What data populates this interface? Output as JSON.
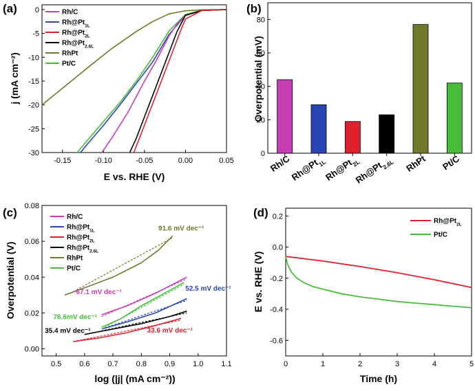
{
  "colors": {
    "rhc": "#c83cb4",
    "rhpt1l": "#2a46b4",
    "rhpt2l": "#e0202c",
    "rhpt26l": "#000000",
    "rhpt": "#707a2a",
    "ptc": "#46be3a"
  },
  "chart_data": [
    {
      "id": "a",
      "type": "line",
      "panel_label": "(a)",
      "xlabel": "E vs. RHE (V)",
      "ylabel": "j (mA cm⁻²)",
      "xlim": [
        -0.175,
        0.05
      ],
      "ylim": [
        -30,
        1
      ],
      "xticks": [
        "-0.15",
        "-0.10",
        "-0.05",
        "0.00",
        "0.05"
      ],
      "yticks": [
        "0",
        "-5",
        "-10",
        "-15",
        "-20",
        "-25",
        "-30"
      ],
      "legend": [
        {
          "base": "Rh/C",
          "sub": "",
          "key": "rhc"
        },
        {
          "base": "Rh@Pt",
          "sub": "1L",
          "key": "rhpt1l"
        },
        {
          "base": "Rh@Pt",
          "sub": "2L",
          "key": "rhpt2l"
        },
        {
          "base": "Rh@Pt",
          "sub": "2.6L",
          "key": "rhpt26l"
        },
        {
          "base": "RhPt",
          "sub": "",
          "key": "rhpt"
        },
        {
          "base": "Pt/C",
          "sub": "",
          "key": "ptc"
        }
      ],
      "series": [
        {
          "name": "RhPt",
          "key": "rhpt",
          "x": [
            -0.175,
            -0.15,
            -0.12,
            -0.09,
            -0.06,
            -0.04,
            -0.02,
            0.0,
            0.02,
            0.05
          ],
          "y": [
            -20,
            -16.5,
            -12.3,
            -8.2,
            -4.6,
            -2.5,
            -0.9,
            -0.25,
            -0.05,
            0
          ]
        },
        {
          "name": "Pt/C",
          "key": "ptc",
          "x": [
            -0.132,
            -0.12,
            -0.1,
            -0.08,
            -0.06,
            -0.04,
            -0.02,
            0.0,
            0.02,
            0.05
          ],
          "y": [
            -30,
            -27.5,
            -23.5,
            -19.5,
            -15,
            -10,
            -4.5,
            -1.0,
            -0.15,
            0
          ]
        },
        {
          "name": "Rh@Pt1L",
          "key": "rhpt1l",
          "x": [
            -0.128,
            -0.12,
            -0.1,
            -0.08,
            -0.06,
            -0.04,
            -0.02,
            0.0,
            0.02,
            0.05
          ],
          "y": [
            -30,
            -28.3,
            -24.3,
            -20,
            -15.5,
            -11,
            -5.2,
            -1.2,
            -0.2,
            0
          ]
        },
        {
          "name": "Rh/C",
          "key": "rhc",
          "x": [
            -0.102,
            -0.09,
            -0.07,
            -0.05,
            -0.035,
            -0.02,
            -0.01,
            0.0,
            0.02,
            0.05
          ],
          "y": [
            -30,
            -27,
            -21.5,
            -15,
            -10.5,
            -5.5,
            -3,
            -1.2,
            -0.2,
            0
          ]
        },
        {
          "name": "Rh@Pt2.6L",
          "key": "rhpt26l",
          "x": [
            -0.068,
            -0.06,
            -0.05,
            -0.04,
            -0.03,
            -0.02,
            -0.01,
            0.0,
            0.02,
            0.05
          ],
          "y": [
            -30,
            -27,
            -22.5,
            -18,
            -13.5,
            -9,
            -4.5,
            -1.2,
            -0.2,
            0
          ]
        },
        {
          "name": "Rh@Pt2L",
          "key": "rhpt2l",
          "x": [
            -0.063,
            -0.055,
            -0.045,
            -0.035,
            -0.025,
            -0.015,
            -0.005,
            0.0,
            0.02,
            0.05
          ],
          "y": [
            -30,
            -26.5,
            -22,
            -17.5,
            -13,
            -8.5,
            -4,
            -2,
            -0.2,
            0
          ]
        }
      ]
    },
    {
      "id": "b",
      "type": "bar",
      "panel_label": "(b)",
      "ylabel": "Overpotential (mV)",
      "ylim": [
        0,
        90
      ],
      "yticks": [
        "0",
        "20",
        "40",
        "60",
        "80"
      ],
      "categories": [
        {
          "base": "Rh/C",
          "sub": "",
          "key": "rhc"
        },
        {
          "base": "Rh@Pt",
          "sub": "1L",
          "key": "rhpt1l"
        },
        {
          "base": "Rh@Pt",
          "sub": "2L",
          "key": "rhpt2l"
        },
        {
          "base": "Rh@Pt",
          "sub": "2.6L",
          "key": "rhpt26l"
        },
        {
          "base": "RhPt",
          "sub": "",
          "key": "rhpt"
        },
        {
          "base": "Pt/C",
          "sub": "",
          "key": "ptc"
        }
      ],
      "values": [
        44,
        29,
        19,
        23,
        77,
        42
      ]
    },
    {
      "id": "c",
      "type": "line",
      "panel_label": "(c)",
      "xlabel": "log (|j| (mA cm⁻²))",
      "ylabel": "Overpotential (V)",
      "xlim": [
        0.45,
        1.1
      ],
      "ylim": [
        -0.004,
        0.08
      ],
      "xticks": [
        "0.5",
        "0.6",
        "0.7",
        "0.8",
        "0.9",
        "1.0",
        "1.1"
      ],
      "yticks": [
        "0.00",
        "0.02",
        "0.04",
        "0.06",
        "0.08"
      ],
      "legend": [
        {
          "base": "Rh/C",
          "sub": "",
          "key": "rhc"
        },
        {
          "base": "Rh@Pt",
          "sub": "1L",
          "key": "rhpt1l"
        },
        {
          "base": "Rh@Pt",
          "sub": "2L",
          "key": "rhpt2l"
        },
        {
          "base": "Rh@Pt",
          "sub": "2.6L",
          "key": "rhpt26l"
        },
        {
          "base": "RhPt",
          "sub": "",
          "key": "rhpt"
        },
        {
          "base": "Pt/C",
          "sub": "",
          "key": "ptc"
        }
      ],
      "series": [
        {
          "name": "RhPt",
          "key": "rhpt",
          "x": [
            0.53,
            0.6,
            0.7,
            0.8,
            0.86,
            0.91
          ],
          "y": [
            0.03,
            0.034,
            0.04,
            0.048,
            0.055,
            0.063
          ],
          "fit_x": [
            0.55,
            0.91
          ],
          "fit_y": [
            0.031,
            0.062
          ]
        },
        {
          "name": "Rh/C",
          "key": "rhc",
          "x": [
            0.66,
            0.75,
            0.85,
            0.96
          ],
          "y": [
            0.019,
            0.024,
            0.031,
            0.04
          ],
          "fit_x": [
            0.66,
            0.96
          ],
          "fit_y": [
            0.018,
            0.039
          ]
        },
        {
          "name": "Rh@Pt1L",
          "key": "rhpt1l",
          "x": [
            0.66,
            0.75,
            0.85,
            0.96
          ],
          "y": [
            0.011,
            0.015,
            0.02,
            0.028
          ],
          "fit_x": [
            0.66,
            0.96
          ],
          "fit_y": [
            0.011,
            0.027
          ]
        },
        {
          "name": "Pt/C",
          "key": "ptc",
          "x": [
            0.66,
            0.73,
            0.8,
            0.87,
            0.95
          ],
          "y": [
            0.012,
            0.017,
            0.024,
            0.03,
            0.037
          ],
          "fit_x": [
            0.66,
            0.95
          ],
          "fit_y": [
            0.011,
            0.036
          ]
        },
        {
          "name": "Rh@Pt2.6L",
          "key": "rhpt26l",
          "x": [
            0.6,
            0.7,
            0.8,
            0.9,
            0.96
          ],
          "y": [
            0.008,
            0.011,
            0.014,
            0.018,
            0.021
          ],
          "fit_x": [
            0.6,
            0.96
          ],
          "fit_y": [
            0.008,
            0.02
          ]
        },
        {
          "name": "Rh@Pt2L",
          "key": "rhpt2l",
          "x": [
            0.56,
            0.65,
            0.75,
            0.85,
            0.94
          ],
          "y": [
            0.004,
            0.006,
            0.009,
            0.013,
            0.017
          ],
          "fit_x": [
            0.56,
            0.94
          ],
          "fit_y": [
            0.004,
            0.016
          ]
        }
      ],
      "annotations": [
        {
          "text": "91.6 mV dec⁻¹",
          "key": "rhpt",
          "x": 0.86,
          "y": 0.066
        },
        {
          "text": "67.1 mV dec⁻¹",
          "key": "rhc",
          "x": 0.57,
          "y": 0.0305
        },
        {
          "text": "52.5 mV dec⁻¹",
          "key": "rhpt1l",
          "x": 0.955,
          "y": 0.0325
        },
        {
          "text": "76.6mV dec⁻¹",
          "key": "ptc",
          "x": 0.49,
          "y": 0.0165
        },
        {
          "text": "35.4 mV dec⁻¹",
          "key": "rhpt26l",
          "x": 0.46,
          "y": 0.0088
        },
        {
          "text": "33.6 mV dec⁻¹",
          "key": "rhpt2l",
          "x": 0.82,
          "y": 0.009
        }
      ]
    },
    {
      "id": "d",
      "type": "line",
      "panel_label": "(d)",
      "xlabel": "Time (h)",
      "ylabel": "E vs. RHE (V)",
      "xlim": [
        0,
        5
      ],
      "ylim": [
        -0.7,
        0.25
      ],
      "xticks": [
        "0",
        "1",
        "2",
        "3",
        "4",
        "5"
      ],
      "yticks": [
        "0.2",
        "0.0",
        "-0.2",
        "-0.4",
        "-0.6"
      ],
      "legend": [
        {
          "base": "Rh@Pt",
          "sub": "2L",
          "key": "rhpt2l"
        },
        {
          "base": "Pt/C",
          "sub": "",
          "key": "ptc"
        }
      ],
      "series": [
        {
          "name": "Rh@Pt2L",
          "key": "rhpt2l",
          "x": [
            0,
            1,
            2,
            3,
            4,
            5
          ],
          "y": [
            -0.06,
            -0.09,
            -0.125,
            -0.165,
            -0.21,
            -0.26
          ]
        },
        {
          "name": "Pt/C",
          "key": "ptc",
          "x": [
            0,
            0.05,
            0.15,
            0.3,
            0.5,
            0.75,
            1,
            1.5,
            2,
            2.5,
            3,
            3.5,
            4,
            4.5,
            5
          ],
          "y": [
            -0.06,
            -0.11,
            -0.16,
            -0.2,
            -0.23,
            -0.255,
            -0.27,
            -0.3,
            -0.32,
            -0.335,
            -0.35,
            -0.36,
            -0.37,
            -0.38,
            -0.39
          ]
        }
      ]
    }
  ]
}
